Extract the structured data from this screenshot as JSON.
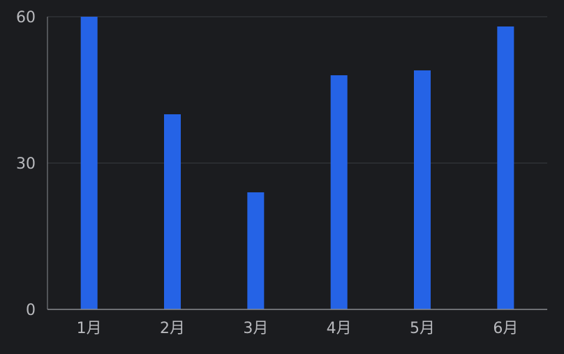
{
  "chart_data": {
    "type": "bar",
    "title": "",
    "xlabel": "",
    "ylabel": "",
    "categories": [
      "1月",
      "2月",
      "3月",
      "4月",
      "5月",
      "6月"
    ],
    "values": [
      60,
      40,
      24,
      48,
      49,
      58
    ],
    "ylim": [
      0,
      60
    ],
    "yticks": [
      0,
      30,
      60
    ],
    "grid": true,
    "legend": "none",
    "colors": {
      "background": "#1b1c1f",
      "bar": "#2563e6",
      "grid": "#3a3b40",
      "axis": "#8a8b90",
      "text": "#b8b9bd"
    }
  }
}
